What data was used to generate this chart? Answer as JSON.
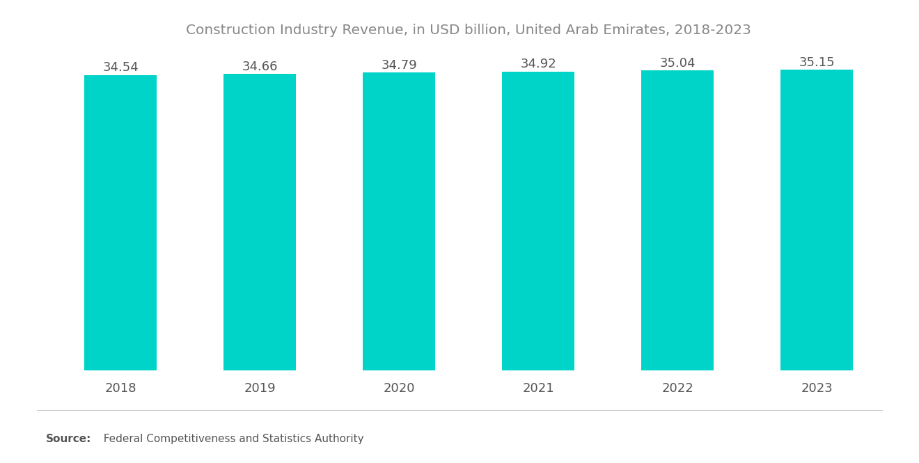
{
  "title": "Construction Industry Revenue, in USD billion, United Arab Emirates, 2018-2023",
  "categories": [
    "2018",
    "2019",
    "2020",
    "2021",
    "2022",
    "2023"
  ],
  "values": [
    34.54,
    34.66,
    34.79,
    34.92,
    35.04,
    35.15
  ],
  "bar_color": "#00D4C8",
  "title_color": "#888888",
  "label_color": "#555555",
  "tick_color": "#555555",
  "source_label_bold": "Source:",
  "source_text": "  Federal Competitiveness and Statistics Authority",
  "ylim_min": 0,
  "ylim_max": 36.8,
  "background_color": "#ffffff",
  "title_fontsize": 14.5,
  "label_fontsize": 13,
  "tick_fontsize": 13,
  "source_fontsize": 11,
  "bar_width": 0.52
}
